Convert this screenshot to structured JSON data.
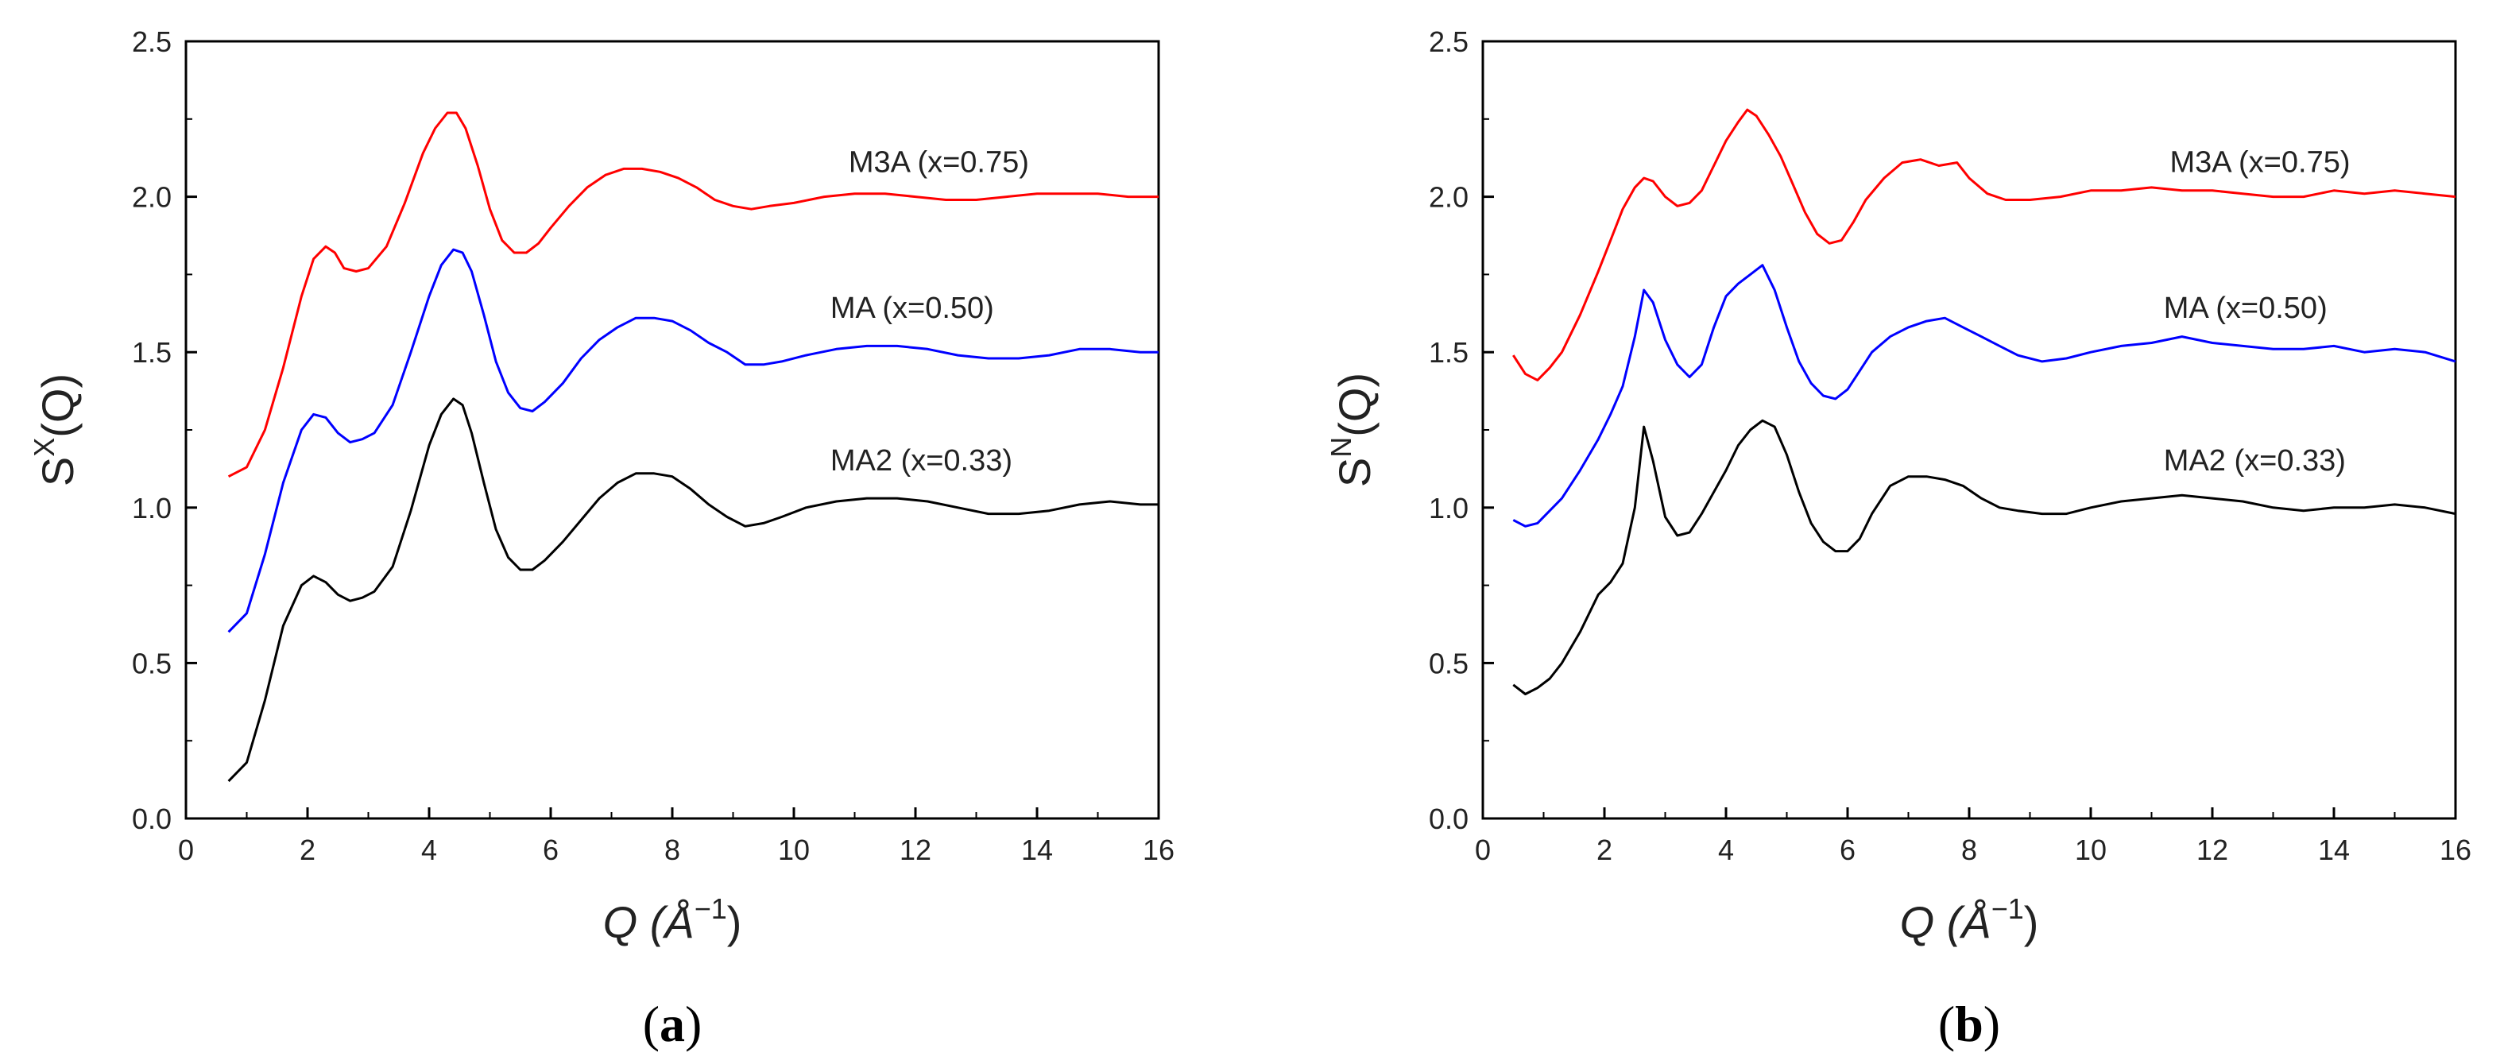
{
  "chart_data": [
    {
      "type": "line",
      "panel_label": "a",
      "ylabel": "S",
      "ylabel_sup": "X",
      "ylabel_suffix": "(Q)",
      "xlabel": "Q (Å",
      "xlabel_sup": "−1",
      "xlabel_suffix": ")",
      "xlim": [
        0,
        16
      ],
      "ylim": [
        0.0,
        2.5
      ],
      "xticks": [
        "0",
        "2",
        "4",
        "6",
        "8",
        "10",
        "12",
        "14",
        "16"
      ],
      "yticks": [
        "0.0",
        "0.5",
        "1.0",
        "1.5",
        "2.0",
        "2.5"
      ],
      "series": [
        {
          "name": "M3A (x=0.75)",
          "color": "#ff0000",
          "label_at": [
            10.9,
            2.08
          ],
          "x": [
            0.7,
            1.0,
            1.3,
            1.6,
            1.9,
            2.1,
            2.3,
            2.45,
            2.6,
            2.8,
            3.0,
            3.3,
            3.6,
            3.9,
            4.1,
            4.3,
            4.45,
            4.6,
            4.8,
            5.0,
            5.2,
            5.4,
            5.6,
            5.8,
            6.0,
            6.3,
            6.6,
            6.9,
            7.2,
            7.5,
            7.8,
            8.1,
            8.4,
            8.7,
            9.0,
            9.3,
            9.6,
            10.0,
            10.5,
            11.0,
            11.5,
            12.0,
            12.5,
            13.0,
            13.5,
            14.0,
            14.5,
            15.0,
            15.5,
            16.0
          ],
          "y": [
            1.1,
            1.13,
            1.25,
            1.45,
            1.68,
            1.8,
            1.84,
            1.82,
            1.77,
            1.76,
            1.77,
            1.84,
            1.98,
            2.14,
            2.22,
            2.27,
            2.27,
            2.22,
            2.1,
            1.96,
            1.86,
            1.82,
            1.82,
            1.85,
            1.9,
            1.97,
            2.03,
            2.07,
            2.09,
            2.09,
            2.08,
            2.06,
            2.03,
            1.99,
            1.97,
            1.96,
            1.97,
            1.98,
            2.0,
            2.01,
            2.01,
            2.0,
            1.99,
            1.99,
            2.0,
            2.01,
            2.01,
            2.01,
            2.0,
            2.0
          ]
        },
        {
          "name": "MA (x=0.50)",
          "color": "#0000ff",
          "label_at": [
            10.6,
            1.61
          ],
          "x": [
            0.7,
            1.0,
            1.3,
            1.6,
            1.9,
            2.1,
            2.3,
            2.5,
            2.7,
            2.9,
            3.1,
            3.4,
            3.7,
            4.0,
            4.2,
            4.4,
            4.55,
            4.7,
            4.9,
            5.1,
            5.3,
            5.5,
            5.7,
            5.9,
            6.2,
            6.5,
            6.8,
            7.1,
            7.4,
            7.7,
            8.0,
            8.3,
            8.6,
            8.9,
            9.2,
            9.5,
            9.8,
            10.2,
            10.7,
            11.2,
            11.7,
            12.2,
            12.7,
            13.2,
            13.7,
            14.2,
            14.7,
            15.2,
            15.7,
            16.0
          ],
          "y": [
            0.6,
            0.66,
            0.85,
            1.08,
            1.25,
            1.3,
            1.29,
            1.24,
            1.21,
            1.22,
            1.24,
            1.33,
            1.5,
            1.68,
            1.78,
            1.83,
            1.82,
            1.76,
            1.62,
            1.47,
            1.37,
            1.32,
            1.31,
            1.34,
            1.4,
            1.48,
            1.54,
            1.58,
            1.61,
            1.61,
            1.6,
            1.57,
            1.53,
            1.5,
            1.46,
            1.46,
            1.47,
            1.49,
            1.51,
            1.52,
            1.52,
            1.51,
            1.49,
            1.48,
            1.48,
            1.49,
            1.51,
            1.51,
            1.5,
            1.5
          ]
        },
        {
          "name": "MA2 (x=0.33)",
          "color": "#000000",
          "label_at": [
            10.6,
            1.12
          ],
          "x": [
            0.7,
            1.0,
            1.3,
            1.6,
            1.9,
            2.1,
            2.3,
            2.5,
            2.7,
            2.9,
            3.1,
            3.4,
            3.7,
            4.0,
            4.2,
            4.4,
            4.55,
            4.7,
            4.9,
            5.1,
            5.3,
            5.5,
            5.7,
            5.9,
            6.2,
            6.5,
            6.8,
            7.1,
            7.4,
            7.7,
            8.0,
            8.3,
            8.6,
            8.9,
            9.2,
            9.5,
            9.8,
            10.2,
            10.7,
            11.2,
            11.7,
            12.2,
            12.7,
            13.2,
            13.7,
            14.2,
            14.7,
            15.2,
            15.7,
            16.0
          ],
          "y": [
            0.12,
            0.18,
            0.38,
            0.62,
            0.75,
            0.78,
            0.76,
            0.72,
            0.7,
            0.71,
            0.73,
            0.81,
            0.99,
            1.2,
            1.3,
            1.35,
            1.33,
            1.24,
            1.08,
            0.93,
            0.84,
            0.8,
            0.8,
            0.83,
            0.89,
            0.96,
            1.03,
            1.08,
            1.11,
            1.11,
            1.1,
            1.06,
            1.01,
            0.97,
            0.94,
            0.95,
            0.97,
            1.0,
            1.02,
            1.03,
            1.03,
            1.02,
            1.0,
            0.98,
            0.98,
            0.99,
            1.01,
            1.02,
            1.01,
            1.01
          ]
        }
      ]
    },
    {
      "type": "line",
      "panel_label": "b",
      "ylabel": "S",
      "ylabel_sup": "N",
      "ylabel_suffix": "(Q)",
      "xlabel": "Q (Å",
      "xlabel_sup": "−1",
      "xlabel_suffix": ")",
      "xlim": [
        0,
        16
      ],
      "ylim": [
        0.0,
        2.5
      ],
      "xticks": [
        "0",
        "2",
        "4",
        "6",
        "8",
        "10",
        "12",
        "14",
        "16"
      ],
      "yticks": [
        "0.0",
        "0.5",
        "1.0",
        "1.5",
        "2.0",
        "2.5"
      ],
      "series": [
        {
          "name": "M3A (x=0.75)",
          "color": "#ff0000",
          "label_at": [
            11.3,
            2.08
          ],
          "x": [
            0.5,
            0.7,
            0.9,
            1.1,
            1.3,
            1.6,
            1.9,
            2.1,
            2.3,
            2.5,
            2.65,
            2.8,
            3.0,
            3.2,
            3.4,
            3.6,
            3.8,
            4.0,
            4.2,
            4.35,
            4.5,
            4.7,
            4.9,
            5.1,
            5.3,
            5.5,
            5.7,
            5.9,
            6.1,
            6.3,
            6.6,
            6.9,
            7.2,
            7.5,
            7.8,
            8.0,
            8.3,
            8.6,
            9.0,
            9.5,
            10.0,
            10.5,
            11.0,
            11.5,
            12.0,
            12.5,
            13.0,
            13.5,
            14.0,
            14.5,
            15.0,
            15.5,
            16.0
          ],
          "y": [
            1.49,
            1.43,
            1.41,
            1.45,
            1.5,
            1.62,
            1.76,
            1.86,
            1.96,
            2.03,
            2.06,
            2.05,
            2.0,
            1.97,
            1.98,
            2.02,
            2.1,
            2.18,
            2.24,
            2.28,
            2.26,
            2.2,
            2.13,
            2.04,
            1.95,
            1.88,
            1.85,
            1.86,
            1.92,
            1.99,
            2.06,
            2.11,
            2.12,
            2.1,
            2.11,
            2.06,
            2.01,
            1.99,
            1.99,
            2.0,
            2.02,
            2.02,
            2.03,
            2.02,
            2.02,
            2.01,
            2.0,
            2.0,
            2.02,
            2.01,
            2.02,
            2.01,
            2.0
          ]
        },
        {
          "name": "MA (x=0.50)",
          "color": "#0000ff",
          "label_at": [
            11.2,
            1.61
          ],
          "x": [
            0.5,
            0.7,
            0.9,
            1.1,
            1.3,
            1.6,
            1.9,
            2.1,
            2.3,
            2.5,
            2.65,
            2.8,
            3.0,
            3.2,
            3.4,
            3.6,
            3.8,
            4.0,
            4.2,
            4.4,
            4.6,
            4.8,
            5.0,
            5.2,
            5.4,
            5.6,
            5.8,
            6.0,
            6.2,
            6.4,
            6.7,
            7.0,
            7.3,
            7.6,
            7.9,
            8.2,
            8.5,
            8.8,
            9.2,
            9.6,
            10.0,
            10.5,
            11.0,
            11.5,
            12.0,
            12.5,
            13.0,
            13.5,
            14.0,
            14.5,
            15.0,
            15.5,
            16.0
          ],
          "y": [
            0.96,
            0.94,
            0.95,
            0.99,
            1.03,
            1.12,
            1.22,
            1.3,
            1.39,
            1.55,
            1.7,
            1.66,
            1.54,
            1.46,
            1.42,
            1.46,
            1.58,
            1.68,
            1.72,
            1.75,
            1.78,
            1.7,
            1.58,
            1.47,
            1.4,
            1.36,
            1.35,
            1.38,
            1.44,
            1.5,
            1.55,
            1.58,
            1.6,
            1.61,
            1.58,
            1.55,
            1.52,
            1.49,
            1.47,
            1.48,
            1.5,
            1.52,
            1.53,
            1.55,
            1.53,
            1.52,
            1.51,
            1.51,
            1.52,
            1.5,
            1.51,
            1.5,
            1.47
          ]
        },
        {
          "name": "MA2 (x=0.33)",
          "color": "#000000",
          "label_at": [
            11.2,
            1.12
          ],
          "x": [
            0.5,
            0.7,
            0.9,
            1.1,
            1.3,
            1.6,
            1.9,
            2.1,
            2.3,
            2.5,
            2.65,
            2.8,
            3.0,
            3.2,
            3.4,
            3.6,
            3.8,
            4.0,
            4.2,
            4.4,
            4.6,
            4.8,
            5.0,
            5.2,
            5.4,
            5.6,
            5.8,
            6.0,
            6.2,
            6.4,
            6.7,
            7.0,
            7.3,
            7.6,
            7.9,
            8.2,
            8.5,
            8.8,
            9.2,
            9.6,
            10.0,
            10.5,
            11.0,
            11.5,
            12.0,
            12.5,
            13.0,
            13.5,
            14.0,
            14.5,
            15.0,
            15.5,
            16.0
          ],
          "y": [
            0.43,
            0.4,
            0.42,
            0.45,
            0.5,
            0.6,
            0.72,
            0.76,
            0.82,
            1.0,
            1.26,
            1.15,
            0.97,
            0.91,
            0.92,
            0.98,
            1.05,
            1.12,
            1.2,
            1.25,
            1.28,
            1.26,
            1.17,
            1.05,
            0.95,
            0.89,
            0.86,
            0.86,
            0.9,
            0.98,
            1.07,
            1.1,
            1.1,
            1.09,
            1.07,
            1.03,
            1.0,
            0.99,
            0.98,
            0.98,
            1.0,
            1.02,
            1.03,
            1.04,
            1.03,
            1.02,
            1.0,
            0.99,
            1.0,
            1.0,
            1.01,
            1.0,
            0.98
          ]
        }
      ]
    }
  ]
}
